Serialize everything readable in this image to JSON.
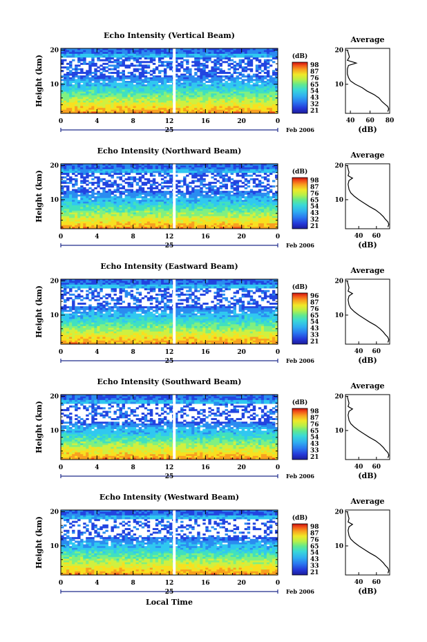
{
  "chart_data": [
    {
      "type": "heatmap",
      "title": "Echo Intensity (Vertical Beam)",
      "ylabel": "Height (km)",
      "x_ticks": [
        "0",
        "4",
        "8",
        "12",
        "16",
        "20",
        "0"
      ],
      "y_ticks": [
        "20",
        "10"
      ],
      "xlim": [
        0,
        24
      ],
      "ylim": [
        1.5,
        20.5
      ],
      "colorbar": {
        "title": "(dB)",
        "ticks": [
          "98",
          "87",
          "76",
          "65",
          "54",
          "43",
          "32",
          "21"
        ]
      },
      "date_day": "25",
      "date_month": "Feb 2006",
      "profile": {
        "title": "Average",
        "xlabel": "(dB)",
        "x_ticks": [
          "40",
          "60",
          "80"
        ],
        "xlim": [
          35,
          80
        ],
        "y_ticks": [
          "20",
          "10"
        ],
        "points": [
          [
            37,
            20
          ],
          [
            38,
            19
          ],
          [
            39,
            18
          ],
          [
            37,
            17
          ],
          [
            46,
            16.2
          ],
          [
            38,
            15.5
          ],
          [
            37,
            14.5
          ],
          [
            37,
            13
          ],
          [
            38,
            12
          ],
          [
            40,
            11
          ],
          [
            45,
            10
          ],
          [
            52,
            9
          ],
          [
            57,
            8
          ],
          [
            64,
            7
          ],
          [
            69,
            6
          ],
          [
            72,
            5
          ],
          [
            75,
            4.2
          ],
          [
            78,
            3.5
          ],
          [
            79,
            2.8
          ],
          [
            78,
            2
          ]
        ]
      }
    },
    {
      "type": "heatmap",
      "title": "Echo Intensity (Northward Beam)",
      "ylabel": "Height (km)",
      "x_ticks": [
        "0",
        "4",
        "8",
        "12",
        "16",
        "20",
        "0"
      ],
      "y_ticks": [
        "20",
        "10"
      ],
      "xlim": [
        0,
        24
      ],
      "ylim": [
        1.5,
        20.5
      ],
      "colorbar": {
        "title": "(dB)",
        "ticks": [
          "98",
          "87",
          "76",
          "65",
          "54",
          "43",
          "32",
          "21"
        ]
      },
      "date_day": "25",
      "date_month": "Feb 2006",
      "profile": {
        "title": "Average",
        "xlabel": "(dB)",
        "x_ticks": [
          "40",
          "60"
        ],
        "xlim": [
          25,
          75
        ],
        "y_ticks": [
          "20",
          "10"
        ],
        "points": [
          [
            27,
            20
          ],
          [
            28,
            19
          ],
          [
            29,
            18
          ],
          [
            28,
            17
          ],
          [
            33,
            16.3
          ],
          [
            29,
            15.6
          ],
          [
            28,
            14.5
          ],
          [
            29,
            13
          ],
          [
            31,
            12
          ],
          [
            35,
            11
          ],
          [
            40,
            10
          ],
          [
            46,
            9
          ],
          [
            52,
            8
          ],
          [
            59,
            7
          ],
          [
            64,
            6
          ],
          [
            68,
            5
          ],
          [
            70,
            4.3
          ],
          [
            73,
            3.5
          ],
          [
            74,
            2.8
          ],
          [
            73,
            2
          ]
        ]
      }
    },
    {
      "type": "heatmap",
      "title": "Echo Intensity (Eastward Beam)",
      "ylabel": "Height (km)",
      "x_ticks": [
        "0",
        "4",
        "8",
        "12",
        "16",
        "20",
        "0"
      ],
      "y_ticks": [
        "20",
        "10"
      ],
      "xlim": [
        0,
        24
      ],
      "ylim": [
        1.5,
        20.5
      ],
      "colorbar": {
        "title": "(dB)",
        "ticks": [
          "96",
          "87",
          "76",
          "65",
          "54",
          "43",
          "33",
          "21"
        ]
      },
      "date_day": "25",
      "date_month": "Feb 2006",
      "profile": {
        "title": "Average",
        "xlabel": "(dB)",
        "x_ticks": [
          "40",
          "60"
        ],
        "xlim": [
          25,
          75
        ],
        "y_ticks": [
          "20",
          "10"
        ],
        "points": [
          [
            27,
            20
          ],
          [
            28,
            19
          ],
          [
            29,
            18
          ],
          [
            28,
            17
          ],
          [
            33,
            16.3
          ],
          [
            29,
            15.6
          ],
          [
            28,
            14.5
          ],
          [
            29,
            13
          ],
          [
            31,
            12
          ],
          [
            35,
            11
          ],
          [
            40,
            10
          ],
          [
            46,
            9
          ],
          [
            52,
            8
          ],
          [
            59,
            7
          ],
          [
            64,
            6
          ],
          [
            68,
            5
          ],
          [
            70,
            4.3
          ],
          [
            73,
            3.5
          ],
          [
            74,
            2.8
          ],
          [
            73,
            2
          ]
        ]
      }
    },
    {
      "type": "heatmap",
      "title": "Echo Intensity (Southward Beam)",
      "ylabel": "Height (km)",
      "x_ticks": [
        "0",
        "4",
        "8",
        "12",
        "16",
        "20",
        "0"
      ],
      "y_ticks": [
        "20",
        "10"
      ],
      "xlim": [
        0,
        24
      ],
      "ylim": [
        1.5,
        20.5
      ],
      "colorbar": {
        "title": "(dB)",
        "ticks": [
          "98",
          "87",
          "76",
          "65",
          "54",
          "43",
          "33",
          "21"
        ]
      },
      "date_day": "25",
      "date_month": "Feb 2006",
      "profile": {
        "title": "Average",
        "xlabel": "(dB)",
        "x_ticks": [
          "40",
          "60"
        ],
        "xlim": [
          25,
          75
        ],
        "y_ticks": [
          "20",
          "10"
        ],
        "points": [
          [
            27,
            20
          ],
          [
            28,
            19
          ],
          [
            29,
            18
          ],
          [
            28,
            17
          ],
          [
            33,
            16.3
          ],
          [
            29,
            15.6
          ],
          [
            28,
            14.5
          ],
          [
            29,
            13
          ],
          [
            31,
            12
          ],
          [
            35,
            11
          ],
          [
            40,
            10
          ],
          [
            46,
            9
          ],
          [
            52,
            8
          ],
          [
            59,
            7
          ],
          [
            64,
            6
          ],
          [
            68,
            5
          ],
          [
            70,
            4.3
          ],
          [
            73,
            3.5
          ],
          [
            74,
            2.8
          ],
          [
            73,
            2
          ]
        ]
      }
    },
    {
      "type": "heatmap",
      "title": "Echo Intensity (Westward Beam)",
      "ylabel": "Height (km)",
      "x_ticks": [
        "0",
        "4",
        "8",
        "12",
        "16",
        "20",
        "0"
      ],
      "y_ticks": [
        "20",
        "10"
      ],
      "xlim": [
        0,
        24
      ],
      "ylim": [
        1.5,
        20.5
      ],
      "colorbar": {
        "title": "(dB)",
        "ticks": [
          "98",
          "87",
          "76",
          "65",
          "54",
          "43",
          "33",
          "21"
        ]
      },
      "date_day": "25",
      "date_month": "Feb 2006",
      "xlabel": "Local Time",
      "profile": {
        "title": "Average",
        "xlabel": "(dB)",
        "x_ticks": [
          "40",
          "60"
        ],
        "xlim": [
          25,
          75
        ],
        "y_ticks": [
          "20",
          "10"
        ],
        "points": [
          [
            27,
            20
          ],
          [
            28,
            19
          ],
          [
            29,
            18
          ],
          [
            28,
            17
          ],
          [
            33,
            16.3
          ],
          [
            29,
            15.6
          ],
          [
            28,
            14.5
          ],
          [
            29,
            13
          ],
          [
            31,
            12
          ],
          [
            35,
            11
          ],
          [
            40,
            10
          ],
          [
            46,
            9
          ],
          [
            52,
            8
          ],
          [
            59,
            7
          ],
          [
            64,
            6
          ],
          [
            68,
            5
          ],
          [
            70,
            4.3
          ],
          [
            73,
            3.5
          ],
          [
            74,
            2.8
          ],
          [
            73,
            2
          ]
        ]
      }
    }
  ],
  "colors": {
    "scale": [
      "#0a1aa0",
      "#2244e0",
      "#2a8cf0",
      "#30c8f0",
      "#40e0c0",
      "#80f080",
      "#d0f040",
      "#f8e020",
      "#f8a020",
      "#f05018",
      "#c81010"
    ],
    "gap": "#ffffff",
    "axis": "#000000",
    "date_bar": "#1f2a8a"
  }
}
